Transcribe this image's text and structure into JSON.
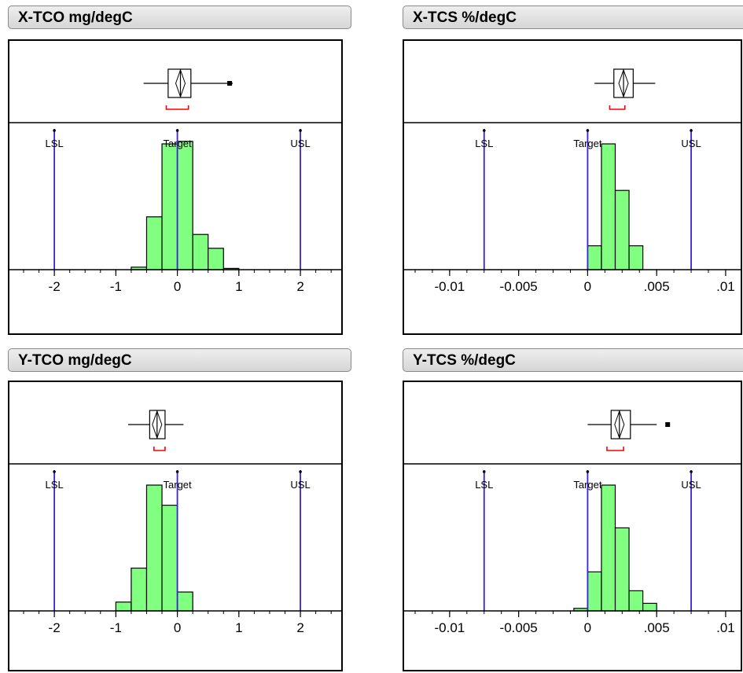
{
  "chart_data": [
    {
      "type": "bar",
      "title": "X-TCO mg/degC",
      "xlim": [
        -2.5,
        2.6
      ],
      "ticks": [
        -2,
        -1,
        0,
        1,
        2
      ],
      "tick_labels": [
        "-2",
        "-1",
        "0",
        "1",
        "2"
      ],
      "spec_limits": [
        {
          "label": "LSL",
          "value": -2
        },
        {
          "label": "Target",
          "value": 0
        },
        {
          "label": "USL",
          "value": 2
        }
      ],
      "bins": [
        {
          "x0": -0.75,
          "x1": -0.5,
          "height": 0.02
        },
        {
          "x0": -0.5,
          "x1": -0.25,
          "height": 0.42
        },
        {
          "x0": -0.25,
          "x1": 0.0,
          "height": 1.0
        },
        {
          "x0": 0.0,
          "x1": 0.25,
          "height": 1.02
        },
        {
          "x0": 0.25,
          "x1": 0.5,
          "height": 0.28
        },
        {
          "x0": 0.5,
          "x1": 0.75,
          "height": 0.17
        },
        {
          "x0": 0.75,
          "x1": 1.0,
          "height": 0.01
        }
      ],
      "box": {
        "whisker_low": -0.55,
        "q1": -0.15,
        "median": 0.05,
        "q3": 0.22,
        "whisker_high": 0.9,
        "outliers": [
          0.85
        ],
        "shortest_half": [
          -0.18,
          0.18
        ]
      }
    },
    {
      "type": "bar",
      "title": "X-TCS %/degC",
      "xlim": [
        -0.0125,
        0.0112
      ],
      "ticks": [
        -0.01,
        -0.005,
        0,
        0.005,
        0.01
      ],
      "tick_labels": [
        "-0.01",
        "-0.005",
        "0",
        ".005",
        ".01"
      ],
      "spec_limits": [
        {
          "label": "LSL",
          "value": -0.0075
        },
        {
          "label": "Target",
          "value": 0
        },
        {
          "label": "USL",
          "value": 0.0075
        }
      ],
      "bins": [
        {
          "x0": 0.0,
          "x1": 0.001,
          "height": 0.19
        },
        {
          "x0": 0.001,
          "x1": 0.002,
          "height": 1.0
        },
        {
          "x0": 0.002,
          "x1": 0.003,
          "height": 0.63
        },
        {
          "x0": 0.003,
          "x1": 0.004,
          "height": 0.19
        },
        {
          "x0": 0.004,
          "x1": 0.005,
          "height": 0.0
        }
      ],
      "box": {
        "whisker_low": 0.0005,
        "q1": 0.0019,
        "median": 0.0026,
        "q3": 0.0033,
        "whisker_high": 0.0049,
        "outliers": [],
        "shortest_half": [
          0.0016,
          0.0027
        ]
      }
    },
    {
      "type": "bar",
      "title": "Y-TCO mg/degC",
      "xlim": [
        -2.5,
        2.6
      ],
      "ticks": [
        -2,
        -1,
        0,
        1,
        2
      ],
      "tick_labels": [
        "-2",
        "-1",
        "0",
        "1",
        "2"
      ],
      "spec_limits": [
        {
          "label": "LSL",
          "value": -2
        },
        {
          "label": "Target",
          "value": 0
        },
        {
          "label": "USL",
          "value": 2
        }
      ],
      "bins": [
        {
          "x0": -1.0,
          "x1": -0.75,
          "height": 0.07
        },
        {
          "x0": -0.75,
          "x1": -0.5,
          "height": 0.34
        },
        {
          "x0": -0.5,
          "x1": -0.25,
          "height": 1.0
        },
        {
          "x0": -0.25,
          "x1": 0.0,
          "height": 0.84
        },
        {
          "x0": 0.0,
          "x1": 0.25,
          "height": 0.15
        }
      ],
      "box": {
        "whisker_low": -0.8,
        "q1": -0.45,
        "median": -0.33,
        "q3": -0.2,
        "whisker_high": 0.1,
        "outliers": [],
        "shortest_half": [
          -0.38,
          -0.2
        ]
      }
    },
    {
      "type": "bar",
      "title": "Y-TCS %/degC",
      "xlim": [
        -0.0125,
        0.0112
      ],
      "ticks": [
        -0.01,
        -0.005,
        0,
        0.005,
        0.01
      ],
      "tick_labels": [
        "-0.01",
        "-0.005",
        "0",
        ".005",
        ".01"
      ],
      "spec_limits": [
        {
          "label": "LSL",
          "value": -0.0075
        },
        {
          "label": "Target",
          "value": 0
        },
        {
          "label": "USL",
          "value": 0.0075
        }
      ],
      "bins": [
        {
          "x0": -0.001,
          "x1": 0.0,
          "height": 0.02
        },
        {
          "x0": 0.0,
          "x1": 0.001,
          "height": 0.31
        },
        {
          "x0": 0.001,
          "x1": 0.002,
          "height": 1.0
        },
        {
          "x0": 0.002,
          "x1": 0.003,
          "height": 0.66
        },
        {
          "x0": 0.003,
          "x1": 0.004,
          "height": 0.16
        },
        {
          "x0": 0.004,
          "x1": 0.005,
          "height": 0.06
        },
        {
          "x0": 0.005,
          "x1": 0.006,
          "height": 0.0
        }
      ],
      "box": {
        "whisker_low": 0.0,
        "q1": 0.0017,
        "median": 0.0023,
        "q3": 0.0031,
        "whisker_high": 0.005,
        "outliers": [
          0.0058
        ],
        "shortest_half": [
          0.0014,
          0.0026
        ]
      }
    }
  ],
  "colors": {
    "bar_fill": "#80ff80",
    "bar_stroke": "#000000",
    "spec_line": "#3a22d6",
    "shortest_half": "#ff0000",
    "header_bg": "#e0e0e0"
  }
}
